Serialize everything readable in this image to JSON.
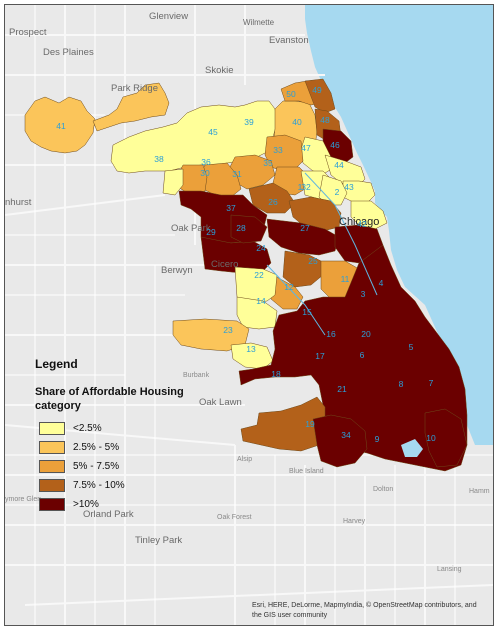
{
  "map": {
    "places": {
      "glenview": "Glenview",
      "wilmette": "Wilmette",
      "prospect": "Prospect",
      "evanston": "Evanston",
      "des_plaines": "Des Plaines",
      "skokie": "Skokie",
      "park_ridge": "Park Ridge",
      "elmhurst": "nhurst",
      "oak_park": "Oak Park",
      "chicago": "Chicago",
      "cicero": "Cicero",
      "berwyn": "Berwyn",
      "burbank": "Burbank",
      "oak_lawn": "Oak Lawn",
      "alsip": "Alsip",
      "blue_island": "Blue Island",
      "dolton": "Dolton",
      "ymore_glen": "ymore Glen",
      "orland_park": "Orland Park",
      "oak_forest": "Oak Forest",
      "harvey": "Harvey",
      "tinley_park": "Tinley Park",
      "lansing": "Lansing",
      "hammond": "Hamm"
    },
    "ward_numbers": [
      "1",
      "2",
      "3",
      "4",
      "5",
      "6",
      "7",
      "8",
      "9",
      "10",
      "11",
      "12",
      "13",
      "14",
      "15",
      "16",
      "17",
      "18",
      "19",
      "20",
      "21",
      "22",
      "23",
      "24",
      "25",
      "26",
      "27",
      "28",
      "29",
      "30",
      "31",
      "32",
      "33",
      "34",
      "35",
      "36",
      "37",
      "38",
      "39",
      "40",
      "41",
      "42",
      "43",
      "44",
      "45",
      "46",
      "47",
      "48",
      "49",
      "50"
    ],
    "colors": {
      "water": "#a6d9f0",
      "land": "#e9e9e9",
      "road": "#f7f7f7",
      "label": "#2a9fd8"
    }
  },
  "legend": {
    "title": "Legend",
    "subtitle": "Share of Affordable Housing category",
    "classes": [
      {
        "label": "<2.5%",
        "color": "#ffff99"
      },
      {
        "label": "2.5% - 5%",
        "color": "#fbc55a"
      },
      {
        "label": "5% - 7.5%",
        "color": "#eba03a"
      },
      {
        "label": "7.5% - 10%",
        "color": "#b3611a"
      },
      {
        "label": ">10%",
        "color": "#6b0000"
      }
    ]
  },
  "attribution": "Esri, HERE, DeLorme, MapmyIndia, © OpenStreetMap contributors, and the GIS user community"
}
